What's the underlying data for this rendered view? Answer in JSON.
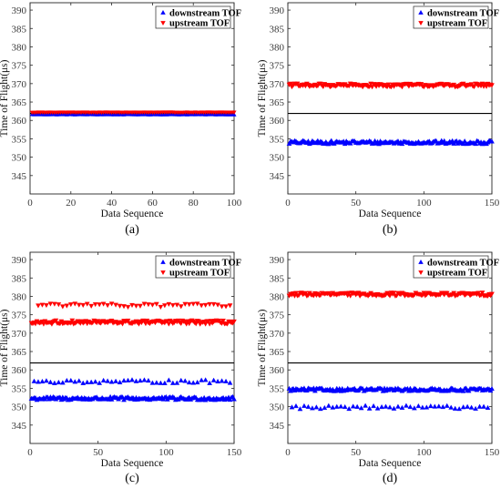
{
  "colors": {
    "downstream": "#0000FF",
    "upstream": "#FF0000",
    "reference_line": "#000000"
  },
  "chart_data": [
    {
      "type": "scatter",
      "label": "(a)",
      "xlabel": "Data Sequence",
      "ylabel": "Time of Flight(μs)",
      "xlim": [
        0,
        100
      ],
      "ylim": [
        340,
        392
      ],
      "xticks": [
        0,
        20,
        40,
        60,
        80,
        100
      ],
      "yticks": [
        345,
        350,
        355,
        360,
        365,
        370,
        375,
        380,
        385,
        390
      ],
      "legend_position": "top-right",
      "reference_line": 361.9,
      "series": [
        {
          "name": "downstream TOF",
          "marker": "triangle-up",
          "color": "#0000FF",
          "levels": [
            {
              "value": 361.6,
              "noise": 0.05,
              "from": 1,
              "to": 100,
              "step": 1
            }
          ]
        },
        {
          "name": "upstream TOF",
          "marker": "triangle-down",
          "color": "#FF0000",
          "levels": [
            {
              "value": 362.2,
              "noise": 0.05,
              "from": 1,
              "to": 100,
              "step": 1
            }
          ]
        }
      ]
    },
    {
      "type": "scatter",
      "label": "(b)",
      "xlabel": "Data Sequence",
      "ylabel": "Time of Flight(μs)",
      "xlim": [
        0,
        150
      ],
      "ylim": [
        340,
        392
      ],
      "xticks": [
        0,
        50,
        100,
        150
      ],
      "yticks": [
        345,
        350,
        355,
        360,
        365,
        370,
        375,
        380,
        385,
        390
      ],
      "legend_position": "top-right",
      "reference_line": 361.9,
      "series": [
        {
          "name": "downstream TOF",
          "marker": "triangle-up",
          "color": "#0000FF",
          "levels": [
            {
              "value": 354.0,
              "noise": 0.45,
              "from": 1,
              "to": 150,
              "step": 1
            }
          ]
        },
        {
          "name": "upstream TOF",
          "marker": "triangle-down",
          "color": "#FF0000",
          "levels": [
            {
              "value": 369.6,
              "noise": 0.45,
              "from": 1,
              "to": 150,
              "step": 1
            }
          ]
        }
      ]
    },
    {
      "type": "scatter",
      "label": "(c)",
      "xlabel": "Data Sequence",
      "ylabel": "Time of Flight(μs)",
      "xlim": [
        0,
        150
      ],
      "ylim": [
        340,
        392
      ],
      "xticks": [
        0,
        50,
        100,
        150
      ],
      "yticks": [
        345,
        350,
        355,
        360,
        365,
        370,
        375,
        380,
        385,
        390
      ],
      "legend_position": "top-right",
      "reference_line": 361.9,
      "series": [
        {
          "name": "downstream TOF",
          "marker": "triangle-up",
          "color": "#0000FF",
          "levels": [
            {
              "value": 352.2,
              "noise": 0.45,
              "from": 1,
              "to": 150,
              "step": 1
            },
            {
              "value": 356.8,
              "noise": 0.45,
              "from": 3,
              "to": 148,
              "step": 3
            }
          ]
        },
        {
          "name": "upstream TOF",
          "marker": "triangle-down",
          "color": "#FF0000",
          "levels": [
            {
              "value": 373.0,
              "noise": 0.5,
              "from": 1,
              "to": 150,
              "step": 1
            },
            {
              "value": 377.6,
              "noise": 0.45,
              "from": 6,
              "to": 148,
              "step": 3
            }
          ]
        }
      ]
    },
    {
      "type": "scatter",
      "label": "(d)",
      "xlabel": "Data Sequence",
      "ylabel": "Time of Flight(μs)",
      "xlim": [
        0,
        150
      ],
      "ylim": [
        340,
        392
      ],
      "xticks": [
        0,
        50,
        100,
        150
      ],
      "yticks": [
        345,
        350,
        355,
        360,
        365,
        370,
        375,
        380,
        385,
        390
      ],
      "legend_position": "top-right",
      "reference_line": 361.9,
      "series": [
        {
          "name": "downstream TOF",
          "marker": "triangle-up",
          "color": "#0000FF",
          "levels": [
            {
              "value": 354.6,
              "noise": 0.4,
              "from": 1,
              "to": 150,
              "step": 1
            },
            {
              "value": 349.8,
              "noise": 0.45,
              "from": 3,
              "to": 148,
              "step": 3
            }
          ]
        },
        {
          "name": "upstream TOF",
          "marker": "triangle-down",
          "color": "#FF0000",
          "levels": [
            {
              "value": 380.6,
              "noise": 0.45,
              "from": 1,
              "to": 150,
              "step": 1
            }
          ]
        }
      ]
    }
  ]
}
